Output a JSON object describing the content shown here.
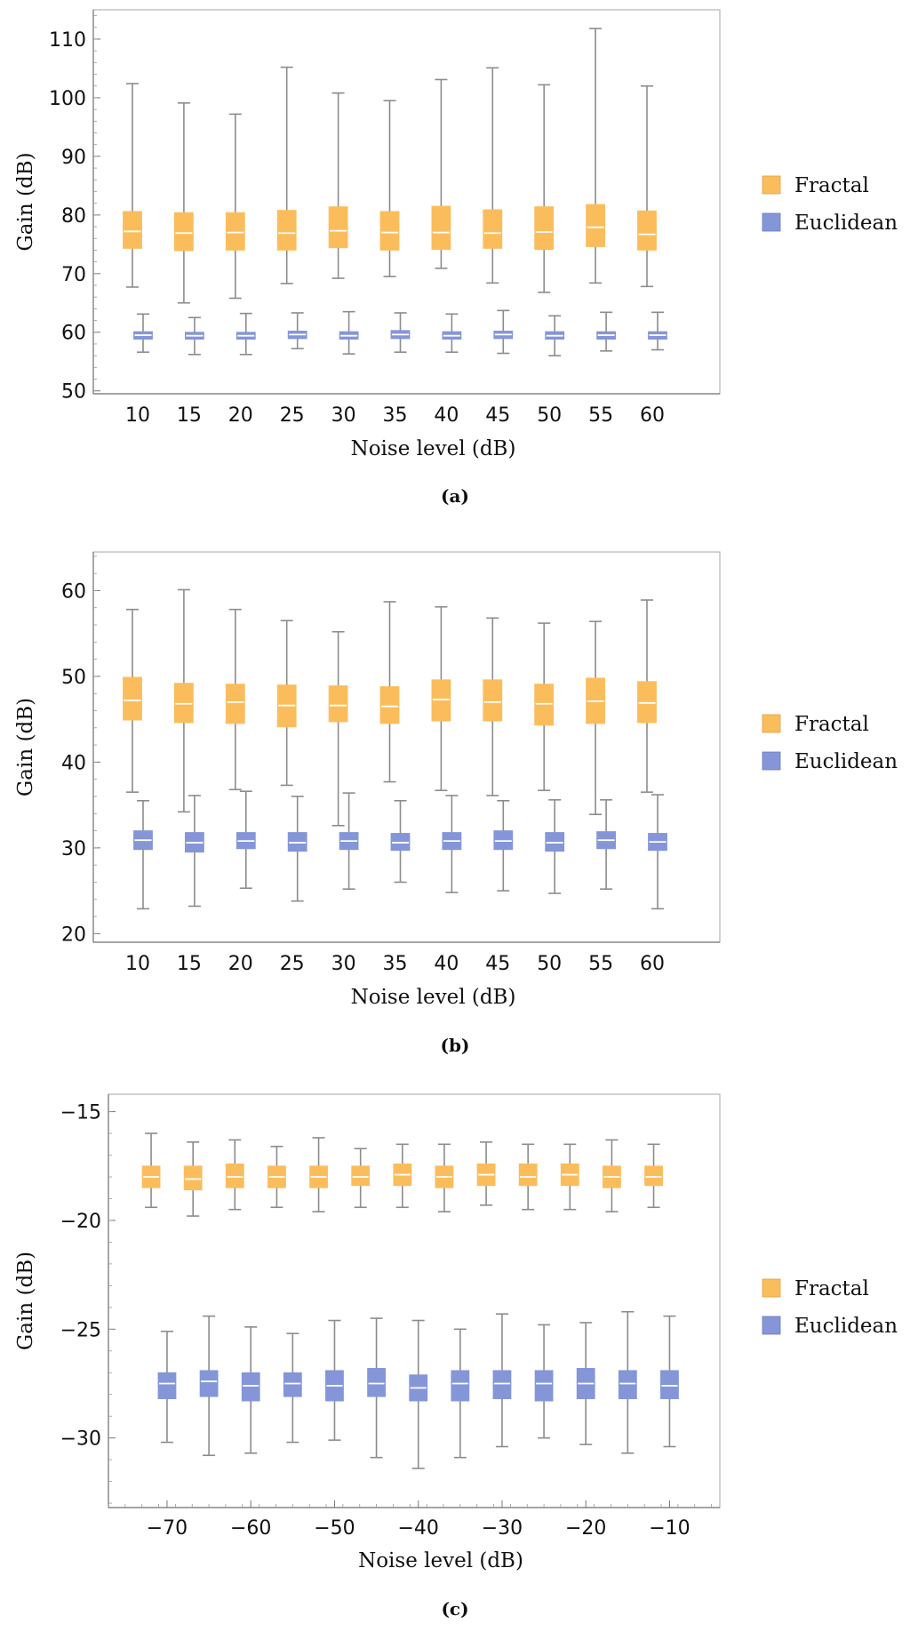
{
  "legend": {
    "fractal_label": "Fractal",
    "euclidean_label": "Euclidean"
  },
  "colors": {
    "fractal": "#fbbd5c",
    "euclidean": "#8596d8",
    "whisker": "#8c8c8c",
    "frame": "#b4b4b4"
  },
  "chart_data": [
    {
      "type": "box",
      "caption": "(a)",
      "xlabel": "Noise level (dB)",
      "ylabel": "Gain (dB)",
      "categories": [
        "10",
        "15",
        "20",
        "25",
        "30",
        "35",
        "40",
        "45",
        "50",
        "55",
        "60"
      ],
      "ylim": [
        49.5,
        115
      ],
      "yticks": [
        50,
        60,
        70,
        80,
        90,
        100,
        110
      ],
      "series": [
        {
          "name": "Fractal",
          "boxes": [
            {
              "min": 67.7,
              "q1": 74.3,
              "median": 77.2,
              "q3": 80.6,
              "max": 102.4
            },
            {
              "min": 65.0,
              "q1": 73.9,
              "median": 76.9,
              "q3": 80.4,
              "max": 99.1
            },
            {
              "min": 65.8,
              "q1": 74.0,
              "median": 77.0,
              "q3": 80.4,
              "max": 97.2
            },
            {
              "min": 68.3,
              "q1": 74.0,
              "median": 76.9,
              "q3": 80.8,
              "max": 105.2
            },
            {
              "min": 69.2,
              "q1": 74.4,
              "median": 77.3,
              "q3": 81.4,
              "max": 100.8
            },
            {
              "min": 69.5,
              "q1": 74.0,
              "median": 77.0,
              "q3": 80.6,
              "max": 99.5
            },
            {
              "min": 70.9,
              "q1": 74.1,
              "median": 77.0,
              "q3": 81.5,
              "max": 103.1
            },
            {
              "min": 68.4,
              "q1": 74.3,
              "median": 76.9,
              "q3": 80.9,
              "max": 105.1
            },
            {
              "min": 66.8,
              "q1": 74.1,
              "median": 77.1,
              "q3": 81.4,
              "max": 102.2
            },
            {
              "min": 68.4,
              "q1": 74.6,
              "median": 77.9,
              "q3": 81.8,
              "max": 111.8
            },
            {
              "min": 67.8,
              "q1": 74.0,
              "median": 76.7,
              "q3": 80.7,
              "max": 102.0
            }
          ]
        },
        {
          "name": "Euclidean",
          "boxes": [
            {
              "min": 56.6,
              "q1": 58.8,
              "median": 59.5,
              "q3": 60.1,
              "max": 63.1
            },
            {
              "min": 56.2,
              "q1": 58.8,
              "median": 59.4,
              "q3": 60.0,
              "max": 62.5
            },
            {
              "min": 56.2,
              "q1": 58.8,
              "median": 59.4,
              "q3": 60.0,
              "max": 63.2
            },
            {
              "min": 57.2,
              "q1": 58.9,
              "median": 59.6,
              "q3": 60.2,
              "max": 63.3
            },
            {
              "min": 56.3,
              "q1": 58.8,
              "median": 59.4,
              "q3": 60.1,
              "max": 63.5
            },
            {
              "min": 56.6,
              "q1": 58.9,
              "median": 59.6,
              "q3": 60.3,
              "max": 63.3
            },
            {
              "min": 56.6,
              "q1": 58.8,
              "median": 59.4,
              "q3": 60.1,
              "max": 63.1
            },
            {
              "min": 56.4,
              "q1": 58.9,
              "median": 59.6,
              "q3": 60.2,
              "max": 63.7
            },
            {
              "min": 56.0,
              "q1": 58.8,
              "median": 59.4,
              "q3": 60.1,
              "max": 62.8
            },
            {
              "min": 56.8,
              "q1": 58.8,
              "median": 59.5,
              "q3": 60.1,
              "max": 63.4
            },
            {
              "min": 57.0,
              "q1": 58.8,
              "median": 59.5,
              "q3": 60.1,
              "max": 63.4
            }
          ]
        }
      ],
      "legend_position": "right",
      "grid": false
    },
    {
      "type": "box",
      "caption": "(b)",
      "xlabel": "Noise level (dB)",
      "ylabel": "Gain (dB)",
      "categories": [
        "10",
        "15",
        "20",
        "25",
        "30",
        "35",
        "40",
        "45",
        "50",
        "55",
        "60"
      ],
      "ylim": [
        19,
        64.5
      ],
      "yticks": [
        20,
        30,
        40,
        50,
        60
      ],
      "series": [
        {
          "name": "Fractal",
          "boxes": [
            {
              "min": 36.5,
              "q1": 44.9,
              "median": 47.2,
              "q3": 49.9,
              "max": 57.8
            },
            {
              "min": 34.2,
              "q1": 44.6,
              "median": 46.8,
              "q3": 49.2,
              "max": 60.1
            },
            {
              "min": 36.8,
              "q1": 44.5,
              "median": 47.0,
              "q3": 49.1,
              "max": 57.8
            },
            {
              "min": 37.3,
              "q1": 44.1,
              "median": 46.6,
              "q3": 49.0,
              "max": 56.5
            },
            {
              "min": 32.6,
              "q1": 44.7,
              "median": 46.6,
              "q3": 48.9,
              "max": 55.2
            },
            {
              "min": 37.7,
              "q1": 44.5,
              "median": 46.5,
              "q3": 48.8,
              "max": 58.7
            },
            {
              "min": 36.7,
              "q1": 44.8,
              "median": 47.3,
              "q3": 49.6,
              "max": 58.1
            },
            {
              "min": 36.1,
              "q1": 44.8,
              "median": 47.0,
              "q3": 49.6,
              "max": 56.8
            },
            {
              "min": 36.7,
              "q1": 44.3,
              "median": 46.8,
              "q3": 49.1,
              "max": 56.2
            },
            {
              "min": 33.9,
              "q1": 44.5,
              "median": 47.1,
              "q3": 49.8,
              "max": 56.4
            },
            {
              "min": 36.5,
              "q1": 44.6,
              "median": 46.9,
              "q3": 49.4,
              "max": 58.9
            }
          ]
        },
        {
          "name": "Euclidean",
          "boxes": [
            {
              "min": 22.9,
              "q1": 29.8,
              "median": 30.9,
              "q3": 32.0,
              "max": 35.5
            },
            {
              "min": 23.2,
              "q1": 29.5,
              "median": 30.6,
              "q3": 31.8,
              "max": 36.1
            },
            {
              "min": 25.3,
              "q1": 29.9,
              "median": 30.8,
              "q3": 31.8,
              "max": 36.6
            },
            {
              "min": 23.8,
              "q1": 29.6,
              "median": 30.6,
              "q3": 31.8,
              "max": 36.0
            },
            {
              "min": 25.2,
              "q1": 29.8,
              "median": 30.8,
              "q3": 31.8,
              "max": 36.4
            },
            {
              "min": 26.0,
              "q1": 29.7,
              "median": 30.6,
              "q3": 31.7,
              "max": 35.5
            },
            {
              "min": 24.8,
              "q1": 29.8,
              "median": 30.8,
              "q3": 31.8,
              "max": 36.1
            },
            {
              "min": 25.0,
              "q1": 29.8,
              "median": 30.8,
              "q3": 32.0,
              "max": 35.5
            },
            {
              "min": 24.7,
              "q1": 29.6,
              "median": 30.6,
              "q3": 31.8,
              "max": 35.6
            },
            {
              "min": 25.2,
              "q1": 29.9,
              "median": 30.9,
              "q3": 31.9,
              "max": 35.6
            },
            {
              "min": 22.9,
              "q1": 29.7,
              "median": 30.7,
              "q3": 31.7,
              "max": 36.2
            }
          ]
        }
      ],
      "legend_position": "right",
      "grid": false
    },
    {
      "type": "box",
      "caption": "(c)",
      "xlabel": "Noise level (dB)",
      "ylabel": "Gain (dB)",
      "categories": [
        "-70",
        "-65",
        "-60",
        "-55",
        "-50",
        "-45",
        "-40",
        "-35",
        "-30",
        "-25",
        "-20",
        "-15",
        "-10"
      ],
      "xticks": [
        -70,
        -60,
        -50,
        -40,
        -30,
        -20,
        -10
      ],
      "xtick_labels": [
        "−70",
        "−60",
        "−50",
        "−40",
        "−30",
        "−20",
        "−10"
      ],
      "xlim": [
        -77,
        -4
      ],
      "ylim": [
        -33.2,
        -14.2
      ],
      "yticks": [
        -15,
        -20,
        -25,
        -30
      ],
      "ytick_labels": [
        "−15",
        "−20",
        "−25",
        "−30"
      ],
      "series": [
        {
          "name": "Fractal",
          "offset": -1.9,
          "boxes": [
            {
              "min": -19.4,
              "q1": -18.5,
              "median": -18.0,
              "q3": -17.5,
              "max": -16.0
            },
            {
              "min": -19.8,
              "q1": -18.6,
              "median": -18.1,
              "q3": -17.5,
              "max": -16.4
            },
            {
              "min": -19.5,
              "q1": -18.5,
              "median": -18.0,
              "q3": -17.4,
              "max": -16.3
            },
            {
              "min": -19.4,
              "q1": -18.5,
              "median": -18.0,
              "q3": -17.5,
              "max": -16.6
            },
            {
              "min": -19.6,
              "q1": -18.5,
              "median": -18.0,
              "q3": -17.5,
              "max": -16.2
            },
            {
              "min": -19.4,
              "q1": -18.4,
              "median": -18.0,
              "q3": -17.5,
              "max": -16.7
            },
            {
              "min": -19.4,
              "q1": -18.4,
              "median": -17.9,
              "q3": -17.4,
              "max": -16.5
            },
            {
              "min": -19.6,
              "q1": -18.5,
              "median": -18.0,
              "q3": -17.5,
              "max": -16.5
            },
            {
              "min": -19.3,
              "q1": -18.4,
              "median": -17.9,
              "q3": -17.4,
              "max": -16.4
            },
            {
              "min": -19.5,
              "q1": -18.4,
              "median": -18.0,
              "q3": -17.4,
              "max": -16.5
            },
            {
              "min": -19.5,
              "q1": -18.4,
              "median": -17.9,
              "q3": -17.4,
              "max": -16.5
            },
            {
              "min": -19.6,
              "q1": -18.5,
              "median": -18.0,
              "q3": -17.5,
              "max": -16.3
            },
            {
              "min": -19.4,
              "q1": -18.4,
              "median": -18.0,
              "q3": -17.5,
              "max": -16.5
            }
          ]
        },
        {
          "name": "Euclidean",
          "offset": 0.0,
          "boxes": [
            {
              "min": -30.2,
              "q1": -28.2,
              "median": -27.5,
              "q3": -27.0,
              "max": -25.1
            },
            {
              "min": -30.8,
              "q1": -28.1,
              "median": -27.4,
              "q3": -26.9,
              "max": -24.4
            },
            {
              "min": -30.7,
              "q1": -28.3,
              "median": -27.6,
              "q3": -27.0,
              "max": -24.9
            },
            {
              "min": -30.2,
              "q1": -28.1,
              "median": -27.5,
              "q3": -27.0,
              "max": -25.2
            },
            {
              "min": -30.1,
              "q1": -28.3,
              "median": -27.6,
              "q3": -26.9,
              "max": -24.6
            },
            {
              "min": -30.9,
              "q1": -28.1,
              "median": -27.5,
              "q3": -26.8,
              "max": -24.5
            },
            {
              "min": -31.4,
              "q1": -28.3,
              "median": -27.7,
              "q3": -27.1,
              "max": -24.6
            },
            {
              "min": -30.9,
              "q1": -28.3,
              "median": -27.5,
              "q3": -26.9,
              "max": -25.0
            },
            {
              "min": -30.4,
              "q1": -28.2,
              "median": -27.5,
              "q3": -26.9,
              "max": -24.3
            },
            {
              "min": -30.0,
              "q1": -28.3,
              "median": -27.5,
              "q3": -26.9,
              "max": -24.8
            },
            {
              "min": -30.3,
              "q1": -28.2,
              "median": -27.5,
              "q3": -26.8,
              "max": -24.7
            },
            {
              "min": -30.7,
              "q1": -28.2,
              "median": -27.5,
              "q3": -26.9,
              "max": -24.2
            },
            {
              "min": -30.4,
              "q1": -28.2,
              "median": -27.6,
              "q3": -26.9,
              "max": -24.4
            }
          ]
        }
      ],
      "legend_position": "right",
      "grid": false
    }
  ]
}
